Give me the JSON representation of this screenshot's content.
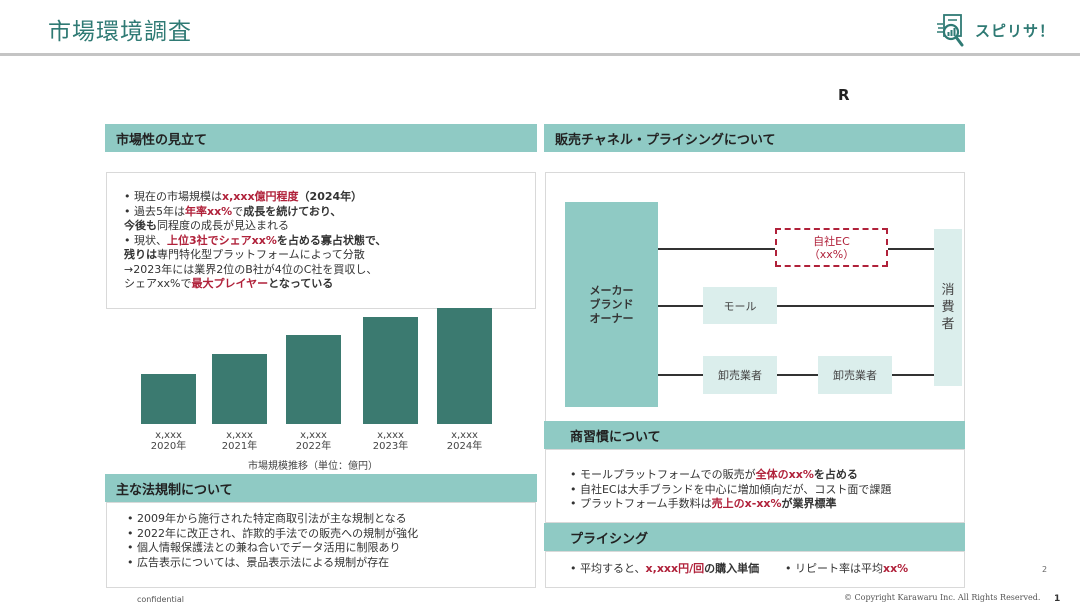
{
  "header": {
    "title": "市場環境調査",
    "logo_text": "スピリサ！",
    "r_mark": "R"
  },
  "colors": {
    "accent_teal": "#2f7a74",
    "section_head": "#8fcac4",
    "bar": "#3b7a70",
    "highlight_red": "#b0213a",
    "node_light": "#dbeeec"
  },
  "market": {
    "heading": "市場性の見立て",
    "bullets": [
      {
        "parts": [
          {
            "t": "• 現在の市場規模は",
            "s": ""
          },
          {
            "t": "x,xxx億円程度",
            "s": "red"
          },
          {
            "t": "（2024年）",
            "s": "b"
          }
        ]
      },
      {
        "parts": [
          {
            "t": "• 過去5年は",
            "s": ""
          },
          {
            "t": "年率xx%",
            "s": "red"
          },
          {
            "t": "で",
            "s": ""
          },
          {
            "t": "成長を続けており、",
            "s": "b"
          }
        ]
      },
      {
        "parts": [
          {
            "t": "今後も",
            "s": "b"
          },
          {
            "t": "同程度の成長が見込まれる",
            "s": ""
          }
        ]
      },
      {
        "parts": [
          {
            "t": "• 現状、",
            "s": ""
          },
          {
            "t": "上位3社でシェアxx%",
            "s": "red"
          },
          {
            "t": "を占める寡占状態で、",
            "s": "b"
          }
        ]
      },
      {
        "parts": [
          {
            "t": "残りは",
            "s": "b"
          },
          {
            "t": "専門特化型プラットフォームによって分散",
            "s": ""
          }
        ]
      },
      {
        "parts": [
          {
            "t": "→2023年には業界2位のB社が4位のC社を買収し、",
            "s": ""
          }
        ]
      },
      {
        "parts": [
          {
            "t": "シェアxx%で",
            "s": ""
          },
          {
            "t": "最大プレイヤー",
            "s": "red"
          },
          {
            "t": "となっている",
            "s": "b"
          }
        ]
      }
    ]
  },
  "chart_data": {
    "type": "bar",
    "title": "市場規模推移（単位：億円）",
    "categories": [
      "2020年",
      "2021年",
      "2022年",
      "2023年",
      "2024年"
    ],
    "value_labels": [
      "x,xxx",
      "x,xxx",
      "x,xxx",
      "x,xxx",
      "x,xxx"
    ],
    "values": [
      50,
      70,
      89,
      107,
      116
    ],
    "xlabel": "",
    "ylabel": "",
    "grid": false,
    "legend": "none",
    "note": "Values are relative bar heights (px-estimated); actual labels are masked as x,xxx"
  },
  "regulation": {
    "heading": "主な法規制について",
    "bullets": [
      "• 2009年から施行された特定商取引法が主な規制となる",
      "• 2022年に改正され、詐欺的手法での販売への規制が強化",
      "• 個人情報保護法との兼ね合いでデータ活用に制限あり",
      "• 広告表示については、景品表示法による規制が存在"
    ]
  },
  "channel": {
    "heading": "販売チャネル・プライシングについて",
    "maker": [
      "メーカー",
      "ブランド",
      "オーナー"
    ],
    "ec_node": [
      "自社EC",
      "（xx%）"
    ],
    "mall": "モール",
    "wholesaler1": "卸売業者",
    "wholesaler2": "卸売業者",
    "consumer": [
      "消",
      "費",
      "者"
    ]
  },
  "practice": {
    "heading": "商習慣について",
    "bullets": [
      {
        "parts": [
          {
            "t": "• モールプラットフォームでの販売が",
            "s": ""
          },
          {
            "t": "全体のxx%",
            "s": "red"
          },
          {
            "t": "を占める",
            "s": "b"
          }
        ]
      },
      {
        "parts": [
          {
            "t": "• 自社ECは大手ブランドを中心に増加傾向だが、コスト面で課題",
            "s": ""
          }
        ]
      },
      {
        "parts": [
          {
            "t": "• プラットフォーム手数料は",
            "s": ""
          },
          {
            "t": "売上のx-xx%",
            "s": "red"
          },
          {
            "t": "が業界標準",
            "s": "b"
          }
        ]
      }
    ]
  },
  "pricing": {
    "heading": "プライシング",
    "item1": [
      {
        "t": "• 平均すると、",
        "s": ""
      },
      {
        "t": "x,xxx円/回",
        "s": "red"
      },
      {
        "t": "の購入単価",
        "s": "b"
      }
    ],
    "item2": [
      {
        "t": "• リピート率は平均",
        "s": ""
      },
      {
        "t": "xx%",
        "s": "red"
      }
    ]
  },
  "footer": {
    "confidential": "confidential",
    "copyright": "© Copyright Karawaru Inc. All Rights Reserved.",
    "page_number": "1",
    "slide_number": "2"
  }
}
